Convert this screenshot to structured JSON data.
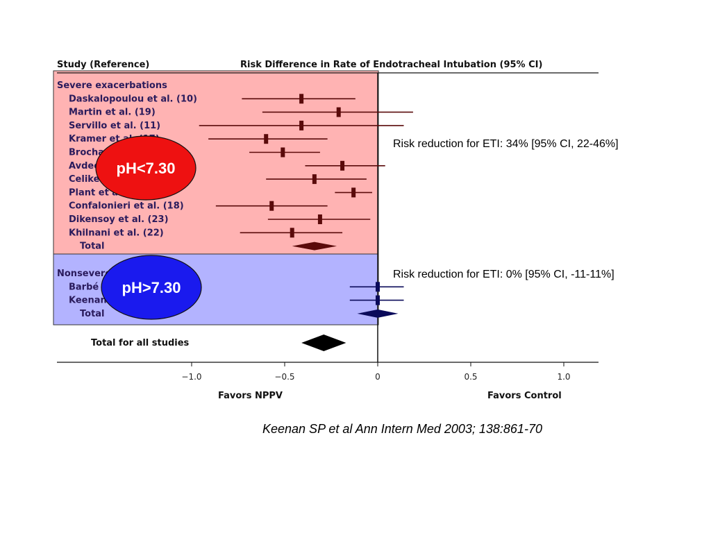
{
  "chart_data": {
    "type": "forest",
    "title": "Risk Difference in Rate of Endotracheal Intubation (95% CI)",
    "column_header": "Study (Reference)",
    "xlim": [
      -1.2,
      1.2
    ],
    "xticks": [
      {
        "value": -1.0,
        "label": "−1.0"
      },
      {
        "value": -0.5,
        "label": "−0.5"
      },
      {
        "value": 0,
        "label": "0"
      },
      {
        "value": 0.5,
        "label": "0.5"
      },
      {
        "value": 1.0,
        "label": "1.0"
      }
    ],
    "favors_left": "Favors NPPV",
    "favors_right": "Favors Control",
    "groups": [
      {
        "label": "Severe exacerbations",
        "color": "#ffb3b3",
        "studies": [
          {
            "name": "Daskalopoulou et al. (10)",
            "est": -0.41,
            "lo": -0.73,
            "hi": -0.12
          },
          {
            "name": "Martin et al. (19)",
            "est": -0.21,
            "lo": -0.62,
            "hi": 0.19
          },
          {
            "name": "Servillo et al. (11)",
            "est": -0.41,
            "lo": -0.96,
            "hi": 0.14
          },
          {
            "name": "Kramer et al. (17)",
            "est": -0.6,
            "lo": -0.91,
            "hi": -0.27
          },
          {
            "name": "Brochard et al. (15)",
            "est": -0.51,
            "lo": -0.69,
            "hi": -0.31
          },
          {
            "name": "Avdeev et al. (16)",
            "est": -0.19,
            "lo": -0.39,
            "hi": 0.04
          },
          {
            "name": "Celikel et al. (13)",
            "est": -0.34,
            "lo": -0.6,
            "hi": -0.06
          },
          {
            "name": "Plant et al. (21)",
            "est": -0.13,
            "lo": -0.23,
            "hi": -0.03
          },
          {
            "name": "Confalonieri et al. (18)",
            "est": -0.57,
            "lo": -0.87,
            "hi": -0.27
          },
          {
            "name": "Dikensoy et al. (23)",
            "est": -0.31,
            "lo": -0.59,
            "hi": -0.04
          },
          {
            "name": "Khilnani et al. (22)",
            "est": -0.46,
            "lo": -0.74,
            "hi": -0.19
          }
        ],
        "total": {
          "label": "Total",
          "est": -0.34,
          "lo": -0.46,
          "hi": -0.22
        }
      },
      {
        "label": "Nonsevere exacerbations",
        "color": "#b3b3ff",
        "studies": [
          {
            "name": "Barbé et al. (12)",
            "est": 0.0,
            "lo": -0.15,
            "hi": 0.14
          },
          {
            "name": "Keenan et al. (20)",
            "est": 0.0,
            "lo": -0.15,
            "hi": 0.14
          }
        ],
        "total": {
          "label": "Total",
          "est": 0.0,
          "lo": -0.11,
          "hi": 0.11
        }
      }
    ],
    "overall": {
      "label": "Total for all studies",
      "est": -0.29,
      "lo": -0.41,
      "hi": -0.17
    }
  },
  "ovals": [
    {
      "text": "pH<7.30",
      "color": "#ee1111"
    },
    {
      "text": "pH>7.30",
      "color": "#1a1aee"
    }
  ],
  "annotations": [
    "Risk reduction for ETI: 34% [95% CI, 22-46%]",
    "Risk reduction for ETI: 0% [95% CI, -11-11%]"
  ],
  "citation": "Keenan SP et al Ann Intern Med 2003; 138:861-70"
}
